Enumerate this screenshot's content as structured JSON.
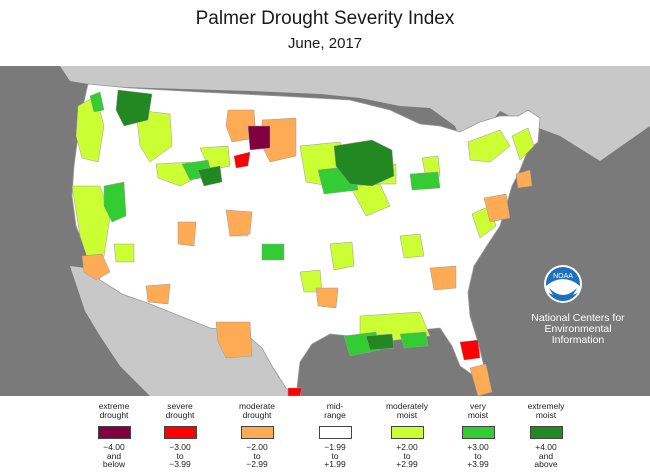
{
  "header": {
    "title": "Palmer Drought Severity Index",
    "subtitle": "June, 2017"
  },
  "branding": {
    "logo_text": "NOAA",
    "credit_lines": [
      "National Centers for",
      "Environmental",
      "Information"
    ]
  },
  "colors": {
    "extreme_drought": "#800040",
    "severe_drought": "#ff0000",
    "moderate_drought": "#ffaa55",
    "mid_range": "#ffffff",
    "moderately_moist": "#ccff33",
    "very_moist": "#33cc33",
    "extremely_moist": "#228822",
    "ocean": "#7a7a7a",
    "land_outside": "#c8c8c8"
  },
  "legend": [
    {
      "label1": "extreme",
      "label2": "drought",
      "range": [
        "−4.00",
        "and",
        "below"
      ],
      "color_key": "extreme_drought"
    },
    {
      "label1": "severe",
      "label2": "drought",
      "range": [
        "−3.00",
        "to",
        "−3.99"
      ],
      "color_key": "severe_drought"
    },
    {
      "label1": "moderate",
      "label2": "drought",
      "range": [
        "−2.00",
        "to",
        "−2.99"
      ],
      "color_key": "moderate_drought"
    },
    {
      "label1": "mid-",
      "label2": "range",
      "range": [
        "−1.99",
        "to",
        "+1.99"
      ],
      "color_key": "mid_range"
    },
    {
      "label1": "moderately",
      "label2": "moist",
      "range": [
        "+2.00",
        "to",
        "+2.99"
      ],
      "color_key": "moderately_moist"
    },
    {
      "label1": "very",
      "label2": "moist",
      "range": [
        "+3.00",
        "to",
        "+3.99"
      ],
      "color_key": "very_moist"
    },
    {
      "label1": "extremely",
      "label2": "moist",
      "range": [
        "+4.00",
        "and",
        "above"
      ],
      "color_key": "extremely_moist"
    }
  ]
}
